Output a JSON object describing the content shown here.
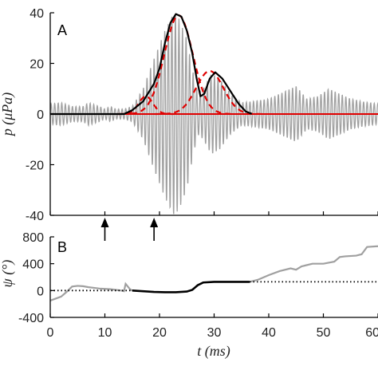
{
  "chart_data": [
    {
      "type": "line",
      "panel_label": "A",
      "ylabel": "p (μPa)",
      "xlim": [
        0,
        60
      ],
      "ylim": [
        -40,
        40
      ],
      "yticks": [
        -40,
        -20,
        0,
        20,
        40
      ],
      "colors": {
        "signal": "#a0a0a0",
        "envelope": "#000000",
        "components": "#e00000",
        "baseline": "#e00000"
      },
      "signal": {
        "carrier_period_ms": 0.65,
        "envelope_points": [
          [
            0,
            4
          ],
          [
            2,
            4.5
          ],
          [
            4,
            3
          ],
          [
            6,
            3
          ],
          [
            7,
            4.5
          ],
          [
            9,
            3
          ],
          [
            10,
            2
          ],
          [
            11,
            3
          ],
          [
            12,
            2
          ],
          [
            13.5,
            2
          ],
          [
            15,
            3
          ],
          [
            17,
            10
          ],
          [
            19,
            22
          ],
          [
            21,
            33
          ],
          [
            22.5,
            40
          ],
          [
            23.5,
            38
          ],
          [
            25,
            30
          ],
          [
            26,
            18
          ],
          [
            27,
            8
          ],
          [
            28,
            10
          ],
          [
            29.5,
            16
          ],
          [
            31,
            14
          ],
          [
            33,
            8
          ],
          [
            35,
            4.5
          ],
          [
            37,
            5
          ],
          [
            40,
            6
          ],
          [
            42,
            8
          ],
          [
            44,
            10
          ],
          [
            45,
            11
          ],
          [
            47,
            6
          ],
          [
            49,
            7
          ],
          [
            51,
            10
          ],
          [
            53,
            8
          ],
          [
            55,
            6
          ],
          [
            57,
            5
          ],
          [
            60,
            4
          ]
        ],
        "negative_scale": 1.0
      },
      "envelope_points": [
        [
          0,
          0
        ],
        [
          13.5,
          0
        ],
        [
          15,
          1.5
        ],
        [
          17,
          5
        ],
        [
          19,
          12
        ],
        [
          20,
          18
        ],
        [
          21,
          28
        ],
        [
          22,
          36
        ],
        [
          23,
          39.5
        ],
        [
          24,
          38.5
        ],
        [
          25,
          33
        ],
        [
          26,
          24
        ],
        [
          26.8,
          14
        ],
        [
          27.5,
          7
        ],
        [
          28.2,
          8
        ],
        [
          29.2,
          14
        ],
        [
          30.2,
          16.5
        ],
        [
          31.5,
          14
        ],
        [
          33,
          9
        ],
        [
          34.5,
          4
        ],
        [
          35.8,
          1
        ],
        [
          37,
          0
        ]
      ],
      "components": [
        {
          "center": 17.5,
          "amplitude": 7,
          "width": 1.3
        },
        {
          "center": 23.5,
          "amplitude": 39,
          "width": 2.6
        },
        {
          "center": 29.2,
          "amplitude": 17,
          "width": 2.5
        }
      ],
      "baseline_start": 0,
      "baseline_end": 60
    },
    {
      "type": "line",
      "panel_label": "B",
      "ylabel": "ψ (°)",
      "xlabel": "t (ms)",
      "xlim": [
        0,
        60
      ],
      "ylim": [
        -400,
        800
      ],
      "yticks": [
        -400,
        0,
        400,
        800
      ],
      "xticks": [
        0,
        10,
        20,
        30,
        40,
        50,
        60
      ],
      "arrows_x": [
        10,
        19
      ],
      "colors": {
        "gray": "#a0a0a0",
        "black": "#000000"
      },
      "series": [
        {
          "style": "gray",
          "points": [
            [
              0,
              -150
            ],
            [
              1,
              -120
            ],
            [
              2,
              -90
            ],
            [
              3,
              -20
            ],
            [
              4,
              60
            ],
            [
              5,
              70
            ],
            [
              6,
              65
            ],
            [
              7,
              50
            ],
            [
              8,
              40
            ],
            [
              9,
              30
            ],
            [
              10,
              25
            ],
            [
              11,
              20
            ],
            [
              12,
              10
            ],
            [
              13,
              0
            ],
            [
              13.5,
              -10
            ],
            [
              13.8,
              100
            ],
            [
              14.2,
              60
            ],
            [
              14.6,
              20
            ],
            [
              15,
              0
            ]
          ]
        },
        {
          "style": "black",
          "points": [
            [
              15,
              0
            ],
            [
              17,
              -10
            ],
            [
              19,
              -20
            ],
            [
              21,
              -25
            ],
            [
              23,
              -25
            ],
            [
              25,
              -15
            ],
            [
              26,
              10
            ],
            [
              27,
              80
            ],
            [
              28,
              120
            ],
            [
              30,
              130
            ],
            [
              32,
              130
            ],
            [
              34,
              130
            ],
            [
              36.5,
              130
            ]
          ]
        },
        {
          "style": "gray",
          "points": [
            [
              36.5,
              130
            ],
            [
              38,
              160
            ],
            [
              40,
              230
            ],
            [
              42,
              290
            ],
            [
              44,
              330
            ],
            [
              45,
              310
            ],
            [
              46,
              360
            ],
            [
              48,
              400
            ],
            [
              50,
              400
            ],
            [
              52,
              430
            ],
            [
              53,
              500
            ],
            [
              54,
              510
            ],
            [
              56,
              520
            ],
            [
              57,
              540
            ],
            [
              58,
              650
            ],
            [
              60,
              660
            ]
          ]
        },
        {
          "style": "dotted",
          "points": [
            [
              0,
              0
            ],
            [
              15,
              0
            ]
          ]
        },
        {
          "style": "dotted",
          "points": [
            [
              36.5,
              130
            ],
            [
              60,
              130
            ]
          ]
        }
      ]
    }
  ]
}
